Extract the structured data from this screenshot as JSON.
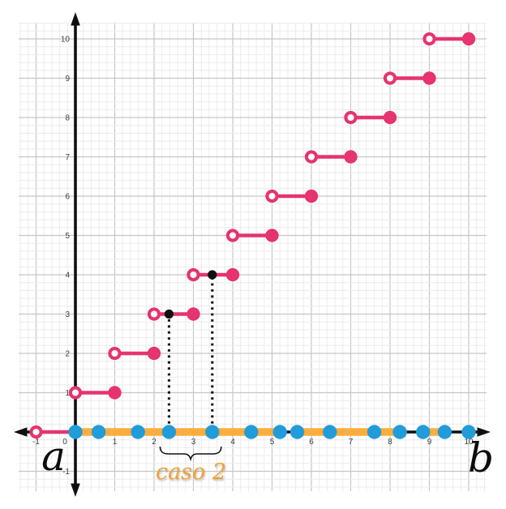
{
  "chart_data": {
    "type": "step",
    "title": "",
    "x_ticks": [
      -1,
      0,
      1,
      2,
      3,
      4,
      5,
      6,
      7,
      8,
      9,
      10
    ],
    "y_ticks": [
      -1,
      1,
      2,
      3,
      4,
      5,
      6,
      7,
      8,
      9,
      10
    ],
    "xlim": [
      -1.45,
      10.5
    ],
    "ylim": [
      -1.55,
      10.4
    ],
    "grid": {
      "on": true,
      "major_step": 1,
      "minor_step": 0.2
    },
    "steps": [
      {
        "x_open": -1,
        "x_closed": 0,
        "y": 0
      },
      {
        "x_open": 0,
        "x_closed": 1,
        "y": 1
      },
      {
        "x_open": 1,
        "x_closed": 2,
        "y": 2
      },
      {
        "x_open": 2,
        "x_closed": 3,
        "y": 3
      },
      {
        "x_open": 3,
        "x_closed": 4,
        "y": 4
      },
      {
        "x_open": 4,
        "x_closed": 5,
        "y": 5
      },
      {
        "x_open": 5,
        "x_closed": 6,
        "y": 6
      },
      {
        "x_open": 6,
        "x_closed": 7,
        "y": 7
      },
      {
        "x_open": 7,
        "x_closed": 8,
        "y": 8
      },
      {
        "x_open": 8,
        "x_closed": 9,
        "y": 9
      },
      {
        "x_open": 9,
        "x_closed": 10,
        "y": 10
      }
    ],
    "partition_points_x": [
      0,
      0.59,
      1.59,
      2.38,
      3.48,
      4.47,
      5.2,
      5.64,
      6.47,
      7.6,
      8.25,
      8.84,
      9.39,
      10
    ],
    "highlight_intervals_x": [
      [
        0,
        5.2
      ],
      [
        5.64,
        8.25
      ],
      [
        8.84,
        9.39
      ]
    ],
    "marked_points": [
      {
        "x": 2.38,
        "y": 3
      },
      {
        "x": 3.48,
        "y": 4
      }
    ],
    "brace_interval_x": [
      2.38,
      3.48
    ],
    "labels": {
      "left_endpoint": "a",
      "right_endpoint": "b",
      "brace": "caso 2"
    },
    "colors": {
      "pink": "#e5346f",
      "blue": "#209cdb",
      "band": "#fbad3d",
      "brace_text": "#f0a237",
      "axis": "#101010",
      "grid_major": "#c6c6c6",
      "grid_minor": "#ebebeb",
      "tick_text": "#3f3f3f"
    }
  }
}
